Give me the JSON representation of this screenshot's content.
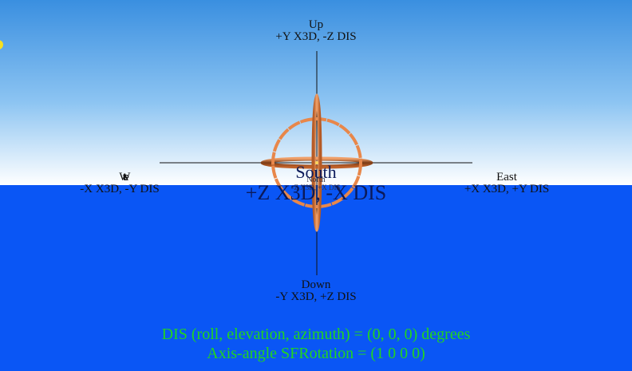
{
  "viewpoint": {
    "up": {
      "title": "Up",
      "axes": "+Y X3D, -Z DIS"
    },
    "down": {
      "title": "Down",
      "axes": "-Y X3D, +Z DIS"
    },
    "west": {
      "title": "West",
      "axes": "-X X3D, -Y DIS"
    },
    "east": {
      "title": "East",
      "axes": "+X X3D, +Y DIS"
    },
    "south": {
      "title": "South",
      "axes": "+Z X3D, -X DIS"
    },
    "north": {
      "title": "North",
      "axes": "-Z X3D, +X DIS"
    }
  },
  "status": {
    "dis_line": "DIS (roll, elevation, azimuth) = (0, 0, 0) degrees",
    "axis_line": "Axis-angle SFRotation = (1 0 0 0)"
  },
  "colors": {
    "sky_top": "#3a8fe0",
    "sky_horizon": "#ffffff",
    "ground": "#0a56f5",
    "ring": "#e8874a",
    "text_green": "#21d421",
    "sun": "#f7e020"
  }
}
